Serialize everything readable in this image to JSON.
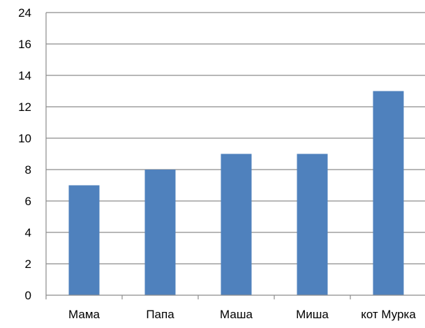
{
  "chart_data": {
    "type": "bar",
    "categories": [
      "Мама",
      "Папа",
      "Маша",
      "Миша",
      "кот Мурка"
    ],
    "values": [
      7,
      8,
      9,
      9,
      13
    ],
    "y_ticks": [
      "0",
      "2",
      "4",
      "6",
      "8",
      "10",
      "12",
      "14",
      "16",
      "24"
    ],
    "grid": true,
    "legend": "none",
    "colors": {
      "bar": "#4f81bd"
    }
  }
}
